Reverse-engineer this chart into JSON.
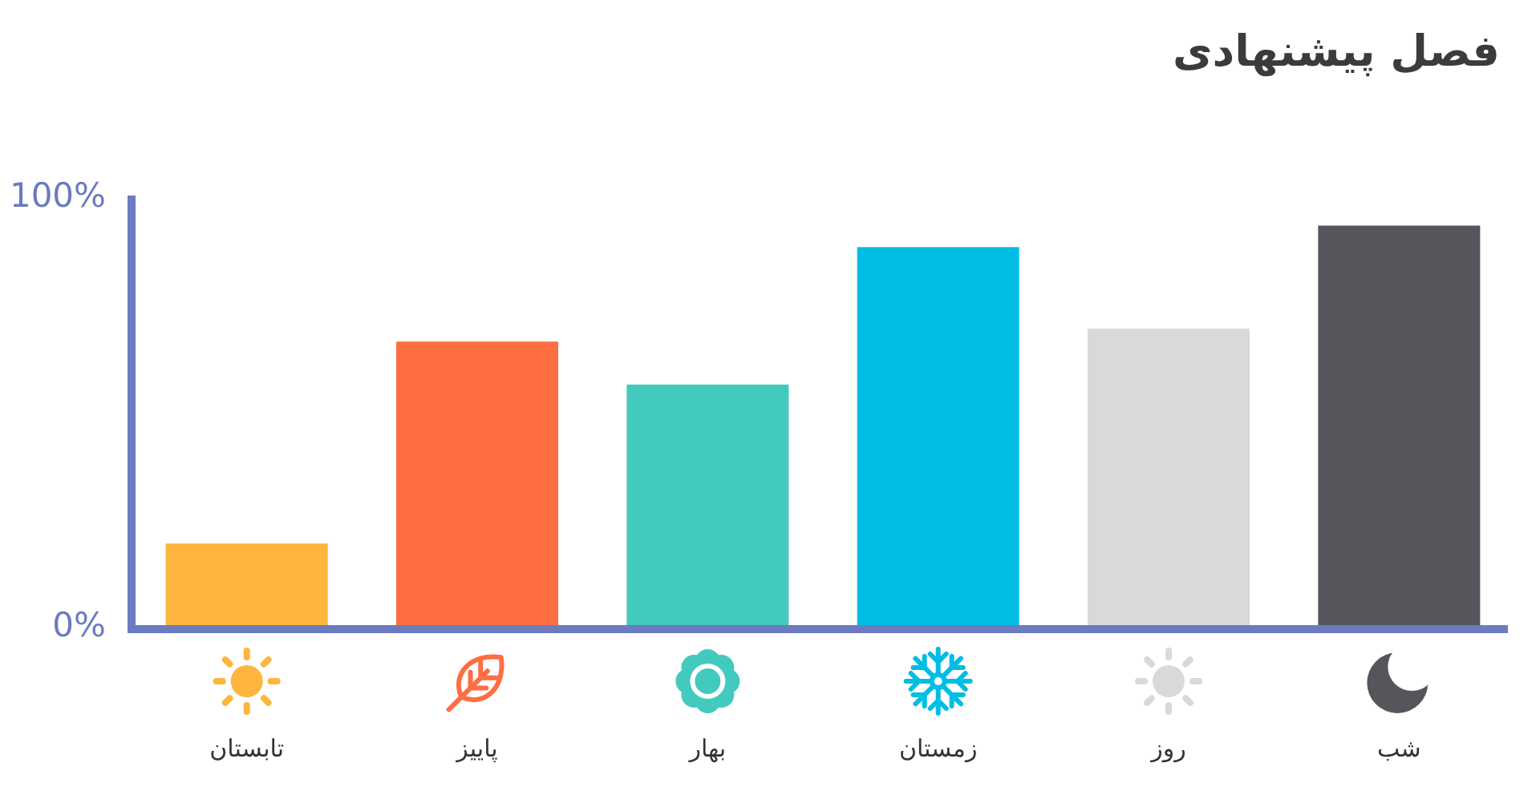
{
  "chart_data": {
    "type": "bar",
    "title": "فصل پیشنهادی",
    "categories": [
      "تابستان",
      "پاییز",
      "بهار",
      "زمستان",
      "روز",
      "شب"
    ],
    "values": [
      19,
      66,
      56,
      88,
      69,
      93
    ],
    "colors": [
      "#fdb53d",
      "#ff6d42",
      "#43cabe",
      "#00bde3",
      "#d9d9d7",
      "#54565b"
    ],
    "ylim": [
      0,
      100
    ],
    "yticks": [
      {
        "value": 0,
        "label": "0%"
      },
      {
        "value": 100,
        "label": "100%"
      }
    ]
  }
}
